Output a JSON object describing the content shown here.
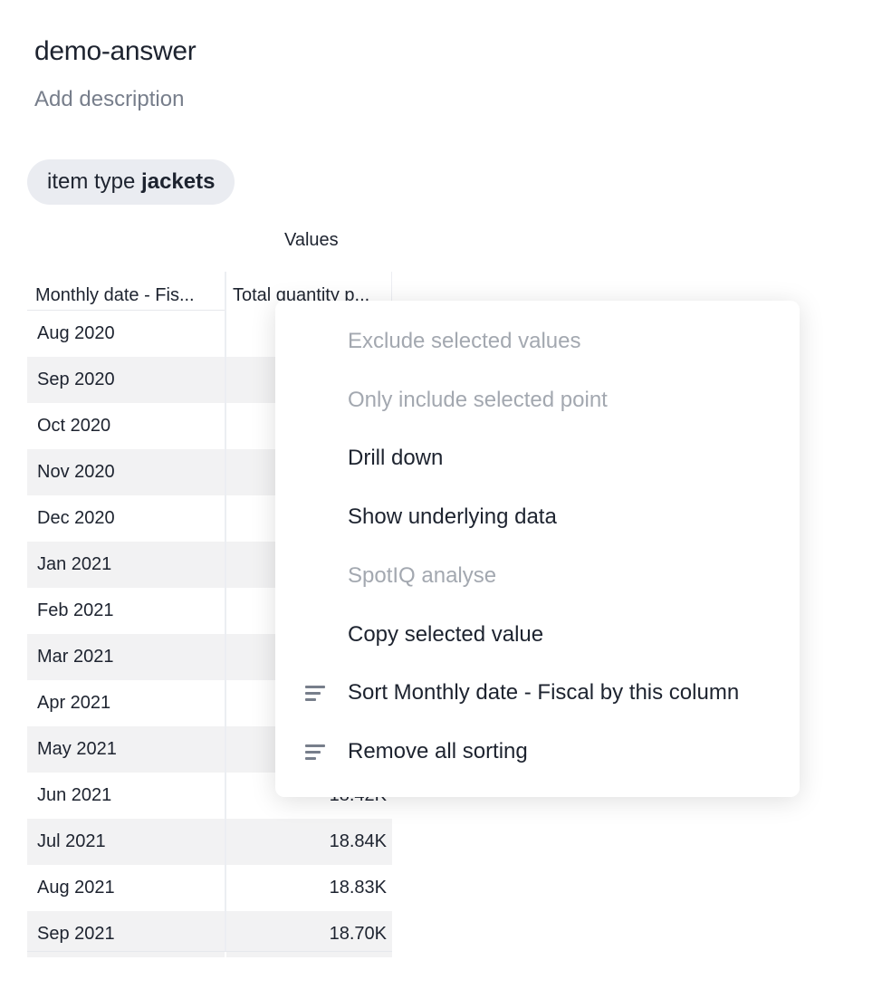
{
  "header": {
    "title": "demo-answer",
    "description_placeholder": "Add description"
  },
  "filter_chip": {
    "label": "item type",
    "value": "jackets"
  },
  "table": {
    "values_header": "Values",
    "columns": [
      "Monthly date - Fis...",
      "Total quantity p..."
    ],
    "rows": [
      {
        "date": "Aug 2020",
        "value": ""
      },
      {
        "date": "Sep 2020",
        "value": ""
      },
      {
        "date": "Oct 2020",
        "value": ""
      },
      {
        "date": "Nov 2020",
        "value": ""
      },
      {
        "date": "Dec 2020",
        "value": ""
      },
      {
        "date": "Jan 2021",
        "value": ""
      },
      {
        "date": "Feb 2021",
        "value": ""
      },
      {
        "date": "Mar 2021",
        "value": ""
      },
      {
        "date": "Apr 2021",
        "value": ""
      },
      {
        "date": "May 2021",
        "value": ""
      },
      {
        "date": "Jun 2021",
        "value": "18.42K"
      },
      {
        "date": "Jul 2021",
        "value": "18.84K"
      },
      {
        "date": "Aug 2021",
        "value": "18.83K"
      },
      {
        "date": "Sep 2021",
        "value": "18.70K"
      }
    ]
  },
  "context_menu": {
    "items": [
      {
        "label": "Exclude selected values",
        "disabled": true,
        "icon": ""
      },
      {
        "label": "Only include selected point",
        "disabled": true,
        "icon": ""
      },
      {
        "label": "Drill down",
        "disabled": false,
        "icon": ""
      },
      {
        "label": "Show underlying data",
        "disabled": false,
        "icon": ""
      },
      {
        "label": "SpotIQ analyse",
        "disabled": true,
        "icon": ""
      },
      {
        "label": "Copy selected value",
        "disabled": false,
        "icon": ""
      },
      {
        "label": "Sort Monthly date - Fiscal by this column",
        "disabled": false,
        "icon": "sort-icon"
      },
      {
        "label": "Remove all sorting",
        "disabled": false,
        "icon": "sort-icon"
      }
    ]
  }
}
